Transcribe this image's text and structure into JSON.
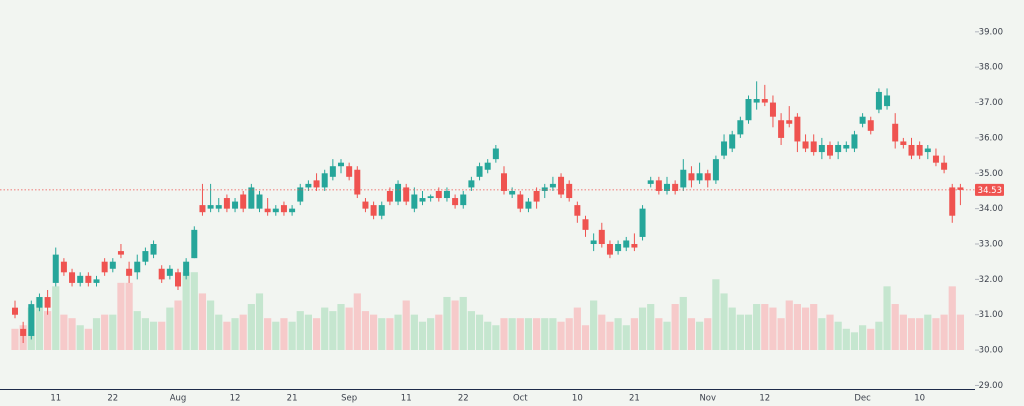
{
  "chart_data": {
    "type": "candlestick",
    "up_color": "#26a69a",
    "down_color": "#ef5350",
    "volume_up_color": "#c5e6cf",
    "volume_down_color": "#f6caca",
    "ylim": [
      28.9,
      39.9
    ],
    "yticks": [
      {
        "value": 29,
        "label": "29.00"
      },
      {
        "value": 30,
        "label": "30.00"
      },
      {
        "value": 31,
        "label": "31.00"
      },
      {
        "value": 32,
        "label": "32.00"
      },
      {
        "value": 33,
        "label": "33.00"
      },
      {
        "value": 34,
        "label": "34.00"
      },
      {
        "value": 35,
        "label": "35.00"
      },
      {
        "value": 36,
        "label": "36.00"
      },
      {
        "value": 37,
        "label": "37.00"
      },
      {
        "value": 38,
        "label": "38.00"
      },
      {
        "value": 39,
        "label": "39.00"
      }
    ],
    "categories": [
      null,
      null,
      null,
      null,
      null,
      "11",
      null,
      null,
      null,
      null,
      null,
      null,
      "22",
      null,
      null,
      null,
      null,
      null,
      null,
      null,
      "Aug",
      null,
      null,
      null,
      null,
      null,
      null,
      "12",
      null,
      null,
      null,
      null,
      null,
      null,
      "21",
      null,
      null,
      null,
      null,
      null,
      null,
      "Sep",
      null,
      null,
      null,
      null,
      null,
      null,
      "11",
      null,
      null,
      null,
      null,
      null,
      null,
      "22",
      null,
      null,
      null,
      null,
      null,
      null,
      "Oct",
      null,
      null,
      null,
      null,
      null,
      null,
      "10",
      null,
      null,
      null,
      null,
      null,
      null,
      "21",
      null,
      null,
      null,
      null,
      null,
      null,
      null,
      null,
      "Nov",
      null,
      null,
      null,
      null,
      null,
      null,
      "12",
      null,
      null,
      null,
      null,
      null,
      null,
      null,
      null,
      null,
      null,
      null,
      "Dec",
      null,
      null,
      null,
      null,
      null,
      null,
      "10",
      null,
      null,
      null,
      null,
      null
    ],
    "candles": [
      [
        31.2,
        31.4,
        30.9,
        31.0
      ],
      [
        30.6,
        30.8,
        30.2,
        30.4
      ],
      [
        30.4,
        31.4,
        30.3,
        31.3
      ],
      [
        31.2,
        31.6,
        31.1,
        31.5
      ],
      [
        31.5,
        31.7,
        31.0,
        31.2
      ],
      [
        31.9,
        32.9,
        31.8,
        32.7
      ],
      [
        32.5,
        32.6,
        32.1,
        32.2
      ],
      [
        32.2,
        32.3,
        31.8,
        31.9
      ],
      [
        31.9,
        32.2,
        31.8,
        32.1
      ],
      [
        32.1,
        32.2,
        31.8,
        31.9
      ],
      [
        31.9,
        32.1,
        31.8,
        32.0
      ],
      [
        32.5,
        32.6,
        32.1,
        32.2
      ],
      [
        32.3,
        32.6,
        32.2,
        32.5
      ],
      [
        32.8,
        33.0,
        32.6,
        32.7
      ],
      [
        32.3,
        32.5,
        31.9,
        32.1
      ],
      [
        32.2,
        32.7,
        32.0,
        32.5
      ],
      [
        32.5,
        32.9,
        32.4,
        32.8
      ],
      [
        32.7,
        33.1,
        32.6,
        33.0
      ],
      [
        32.3,
        32.4,
        31.9,
        32.0
      ],
      [
        32.1,
        32.4,
        32.0,
        32.3
      ],
      [
        32.2,
        32.3,
        31.7,
        31.8
      ],
      [
        32.1,
        32.6,
        32.0,
        32.5
      ],
      [
        32.6,
        33.5,
        32.6,
        33.4
      ],
      [
        34.1,
        34.7,
        33.8,
        33.9
      ],
      [
        34.0,
        34.7,
        33.9,
        34.1
      ],
      [
        34.0,
        34.3,
        33.9,
        34.1
      ],
      [
        34.3,
        34.4,
        33.9,
        34.0
      ],
      [
        34.0,
        34.3,
        33.9,
        34.2
      ],
      [
        34.4,
        34.5,
        33.9,
        34.0
      ],
      [
        34.0,
        34.7,
        34.0,
        34.6
      ],
      [
        34.0,
        34.5,
        33.9,
        34.4
      ],
      [
        34.0,
        34.3,
        33.8,
        33.9
      ],
      [
        33.9,
        34.1,
        33.8,
        34.0
      ],
      [
        34.1,
        34.2,
        33.8,
        33.9
      ],
      [
        33.9,
        34.1,
        33.8,
        34.0
      ],
      [
        34.2,
        34.7,
        34.1,
        34.6
      ],
      [
        34.6,
        34.8,
        34.5,
        34.7
      ],
      [
        34.8,
        35.0,
        34.5,
        34.6
      ],
      [
        34.6,
        35.1,
        34.5,
        35.0
      ],
      [
        34.9,
        35.4,
        34.8,
        35.2
      ],
      [
        35.2,
        35.4,
        35.0,
        35.3
      ],
      [
        35.2,
        35.3,
        34.8,
        34.9
      ],
      [
        35.1,
        35.2,
        34.3,
        34.4
      ],
      [
        34.2,
        34.3,
        33.9,
        34.0
      ],
      [
        34.1,
        34.2,
        33.7,
        33.8
      ],
      [
        33.8,
        34.2,
        33.7,
        34.1
      ],
      [
        34.5,
        34.6,
        34.1,
        34.2
      ],
      [
        34.2,
        34.8,
        34.1,
        34.7
      ],
      [
        34.6,
        34.7,
        34.1,
        34.2
      ],
      [
        34.0,
        34.6,
        33.9,
        34.4
      ],
      [
        34.2,
        34.5,
        34.1,
        34.3
      ],
      [
        34.3,
        34.4,
        34.2,
        34.35
      ],
      [
        34.5,
        34.6,
        34.2,
        34.3
      ],
      [
        34.3,
        34.6,
        34.2,
        34.5
      ],
      [
        34.3,
        34.4,
        34.0,
        34.1
      ],
      [
        34.1,
        34.5,
        34.0,
        34.4
      ],
      [
        34.6,
        34.9,
        34.5,
        34.8
      ],
      [
        34.9,
        35.3,
        34.8,
        35.2
      ],
      [
        35.1,
        35.4,
        35.0,
        35.3
      ],
      [
        35.4,
        35.8,
        35.3,
        35.7
      ],
      [
        35.0,
        35.2,
        34.4,
        34.5
      ],
      [
        34.4,
        34.6,
        34.3,
        34.5
      ],
      [
        34.4,
        34.5,
        33.9,
        34.0
      ],
      [
        34.0,
        34.3,
        33.9,
        34.2
      ],
      [
        34.5,
        34.6,
        34.0,
        34.2
      ],
      [
        34.5,
        34.7,
        34.3,
        34.6
      ],
      [
        34.6,
        34.9,
        34.5,
        34.7
      ],
      [
        34.9,
        35.0,
        34.3,
        34.4
      ],
      [
        34.7,
        34.8,
        34.2,
        34.3
      ],
      [
        34.1,
        34.2,
        33.6,
        33.8
      ],
      [
        33.7,
        33.8,
        33.2,
        33.4
      ],
      [
        33.0,
        33.3,
        32.8,
        33.1
      ],
      [
        33.4,
        33.6,
        32.9,
        33.0
      ],
      [
        33.0,
        33.1,
        32.6,
        32.7
      ],
      [
        32.8,
        33.1,
        32.7,
        33.0
      ],
      [
        32.9,
        33.2,
        32.8,
        33.1
      ],
      [
        33.0,
        33.3,
        32.8,
        32.9
      ],
      [
        33.2,
        34.1,
        33.1,
        34.0
      ],
      [
        34.7,
        34.9,
        34.6,
        34.8
      ],
      [
        34.8,
        34.9,
        34.4,
        34.5
      ],
      [
        34.5,
        34.9,
        34.4,
        34.7
      ],
      [
        34.7,
        34.8,
        34.4,
        34.5
      ],
      [
        34.6,
        35.4,
        34.5,
        35.1
      ],
      [
        35.0,
        35.2,
        34.6,
        34.8
      ],
      [
        34.8,
        35.3,
        34.7,
        35.0
      ],
      [
        35.0,
        35.1,
        34.6,
        34.8
      ],
      [
        34.8,
        35.5,
        34.7,
        35.4
      ],
      [
        35.5,
        36.1,
        35.4,
        35.9
      ],
      [
        35.7,
        36.2,
        35.6,
        36.1
      ],
      [
        36.1,
        36.6,
        36.0,
        36.5
      ],
      [
        36.5,
        37.2,
        36.4,
        37.1
      ],
      [
        37.0,
        37.6,
        36.8,
        37.1
      ],
      [
        37.1,
        37.5,
        36.9,
        37.0
      ],
      [
        37.0,
        37.2,
        36.3,
        36.6
      ],
      [
        36.5,
        36.7,
        35.8,
        36.0
      ],
      [
        36.5,
        36.9,
        36.3,
        36.4
      ],
      [
        36.6,
        36.7,
        35.6,
        35.9
      ],
      [
        35.9,
        36.1,
        35.6,
        35.7
      ],
      [
        35.9,
        36.1,
        35.5,
        35.6
      ],
      [
        35.6,
        36.0,
        35.4,
        35.8
      ],
      [
        35.8,
        35.9,
        35.4,
        35.5
      ],
      [
        35.6,
        35.9,
        35.4,
        35.8
      ],
      [
        35.7,
        35.9,
        35.6,
        35.8
      ],
      [
        35.7,
        36.2,
        35.6,
        36.1
      ],
      [
        36.4,
        36.7,
        36.3,
        36.6
      ],
      [
        36.5,
        36.6,
        36.1,
        36.2
      ],
      [
        36.8,
        37.4,
        36.7,
        37.3
      ],
      [
        36.9,
        37.4,
        36.8,
        37.2
      ],
      [
        36.4,
        36.7,
        35.7,
        35.9
      ],
      [
        35.9,
        36.0,
        35.7,
        35.8
      ],
      [
        35.8,
        36.0,
        35.4,
        35.5
      ],
      [
        35.8,
        35.9,
        35.4,
        35.5
      ],
      [
        35.6,
        35.8,
        35.4,
        35.7
      ],
      [
        35.5,
        35.7,
        35.2,
        35.3
      ],
      [
        35.3,
        35.5,
        35.0,
        35.1
      ],
      [
        34.6,
        34.7,
        33.6,
        33.8
      ],
      [
        34.6,
        34.7,
        34.1,
        34.53
      ]
    ],
    "volumes": [
      0.6,
      0.7,
      1.2,
      1.5,
      1.1,
      1.8,
      1.0,
      0.9,
      0.7,
      0.6,
      0.9,
      1.0,
      1.0,
      1.9,
      1.9,
      1.1,
      0.9,
      0.8,
      0.8,
      1.2,
      1.4,
      2.2,
      2.2,
      1.6,
      1.4,
      1.0,
      0.8,
      0.9,
      1.0,
      1.3,
      1.6,
      0.9,
      0.8,
      0.9,
      0.8,
      1.1,
      1.0,
      0.9,
      1.2,
      1.1,
      1.3,
      1.2,
      1.6,
      1.1,
      1.0,
      0.9,
      0.9,
      1.0,
      1.4,
      1.0,
      0.8,
      0.9,
      1.0,
      1.5,
      1.4,
      1.5,
      1.1,
      1.0,
      0.8,
      0.7,
      0.9,
      0.9,
      0.9,
      0.9,
      0.9,
      0.9,
      0.9,
      0.8,
      0.9,
      1.2,
      0.7,
      1.4,
      1.0,
      0.8,
      0.9,
      0.7,
      0.9,
      1.2,
      1.3,
      0.9,
      0.8,
      1.3,
      1.5,
      0.9,
      0.8,
      0.9,
      2.0,
      1.6,
      1.2,
      1.0,
      1.0,
      1.3,
      1.3,
      1.2,
      0.9,
      1.4,
      1.3,
      1.2,
      1.3,
      0.9,
      1.0,
      0.8,
      0.6,
      0.5,
      0.7,
      0.6,
      0.8,
      1.8,
      1.3,
      1.0,
      0.9,
      0.9,
      1.0,
      0.9,
      1.0,
      1.8,
      1.0
    ]
  }
}
